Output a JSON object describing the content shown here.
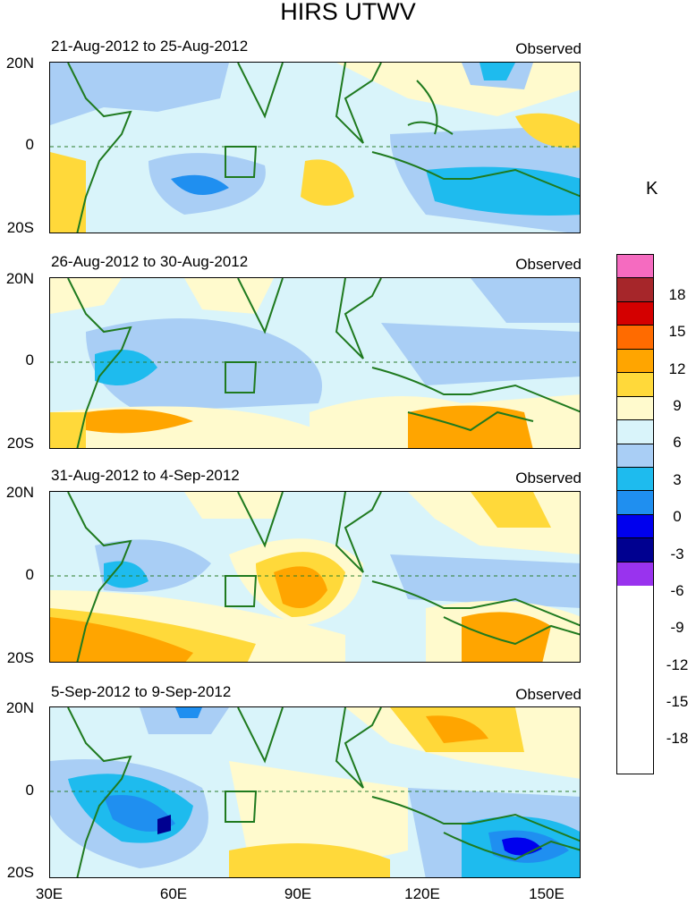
{
  "title": "HIRS UTWV",
  "unit": "K",
  "panels": [
    {
      "label": "21-Aug-2012 to 25-Aug-2012",
      "tag": "Observed"
    },
    {
      "label": "26-Aug-2012 to 30-Aug-2012",
      "tag": "Observed"
    },
    {
      "label": "31-Aug-2012 to 4-Sep-2012",
      "tag": "Observed"
    },
    {
      "label": "5-Sep-2012 to 9-Sep-2012",
      "tag": "Observed"
    }
  ],
  "axis": {
    "y": [
      "20N",
      "0",
      "20S"
    ],
    "x": [
      "30E",
      "60E",
      "90E",
      "120E",
      "150E"
    ]
  },
  "colorbar": {
    "labels": [
      "18",
      "15",
      "12",
      "9",
      "6",
      "3",
      "0",
      "-3",
      "-6",
      "-9",
      "-12",
      "-15",
      "-18"
    ],
    "colors": [
      "#f56bc0",
      "#a6262a",
      "#d40000",
      "#ff6b00",
      "#ffa500",
      "#ffd93a",
      "#fffacd",
      "#d9f4fa",
      "#a9cef5",
      "#1ebbee",
      "#1f8ff0",
      "#0000ee",
      "#000090",
      "#9933ee"
    ]
  }
}
